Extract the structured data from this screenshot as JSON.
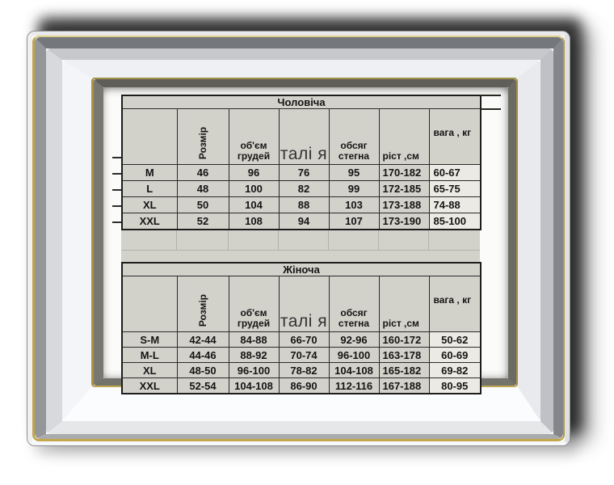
{
  "frame": {
    "accent_gold": "#c2a64e",
    "silver_light": "#eef0f4",
    "silver_mid": "#94969a",
    "inner_edge": "#5f5f58",
    "shadow": "#2a2a2a",
    "matte": "#fbfbf9"
  },
  "sheet": {
    "background": "#d2d1ca",
    "grid_color": "#2a2a2a",
    "weight_column_background": "#eceae4",
    "text_color": "#141414"
  },
  "tables": [
    {
      "title": "Чоловіча",
      "columns": {
        "corner": "",
        "rozmir": "Розмір",
        "chest": [
          "об'єм",
          "грудей"
        ],
        "waist": "талі я",
        "hip": [
          "обсяг",
          "стегна"
        ],
        "height": "ріст ,см",
        "weight": "вага , кг"
      },
      "rows": [
        [
          "M",
          "46",
          "96",
          "76",
          "95",
          "170-182",
          "60-67"
        ],
        [
          "L",
          "48",
          "100",
          "82",
          "99",
          "172-185",
          "65-75"
        ],
        [
          "XL",
          "50",
          "104",
          "88",
          "103",
          "173-188",
          "74-88"
        ],
        [
          "XXL",
          "52",
          "108",
          "94",
          "107",
          "173-190",
          "85-100"
        ]
      ]
    },
    {
      "title": "Жіноча",
      "columns": {
        "corner": "",
        "rozmir": "Розмір",
        "chest": [
          "об'єм",
          "грудей"
        ],
        "waist": "талі я",
        "hip": [
          "обсяг",
          "стегна"
        ],
        "height": "ріст ,см",
        "weight": "вага , кг"
      },
      "rows": [
        [
          "S-M",
          "42-44",
          "84-88",
          "66-70",
          "92-96",
          "160-172",
          "50-62"
        ],
        [
          "M-L",
          "44-46",
          "88-92",
          "70-74",
          "96-100",
          "163-178",
          "60-69"
        ],
        [
          "XL",
          "48-50",
          "96-100",
          "78-82",
          "104-108",
          "165-182",
          "69-82"
        ],
        [
          "XXL",
          "52-54",
          "104-108",
          "86-90",
          "112-116",
          "167-188",
          "80-95"
        ]
      ]
    }
  ]
}
